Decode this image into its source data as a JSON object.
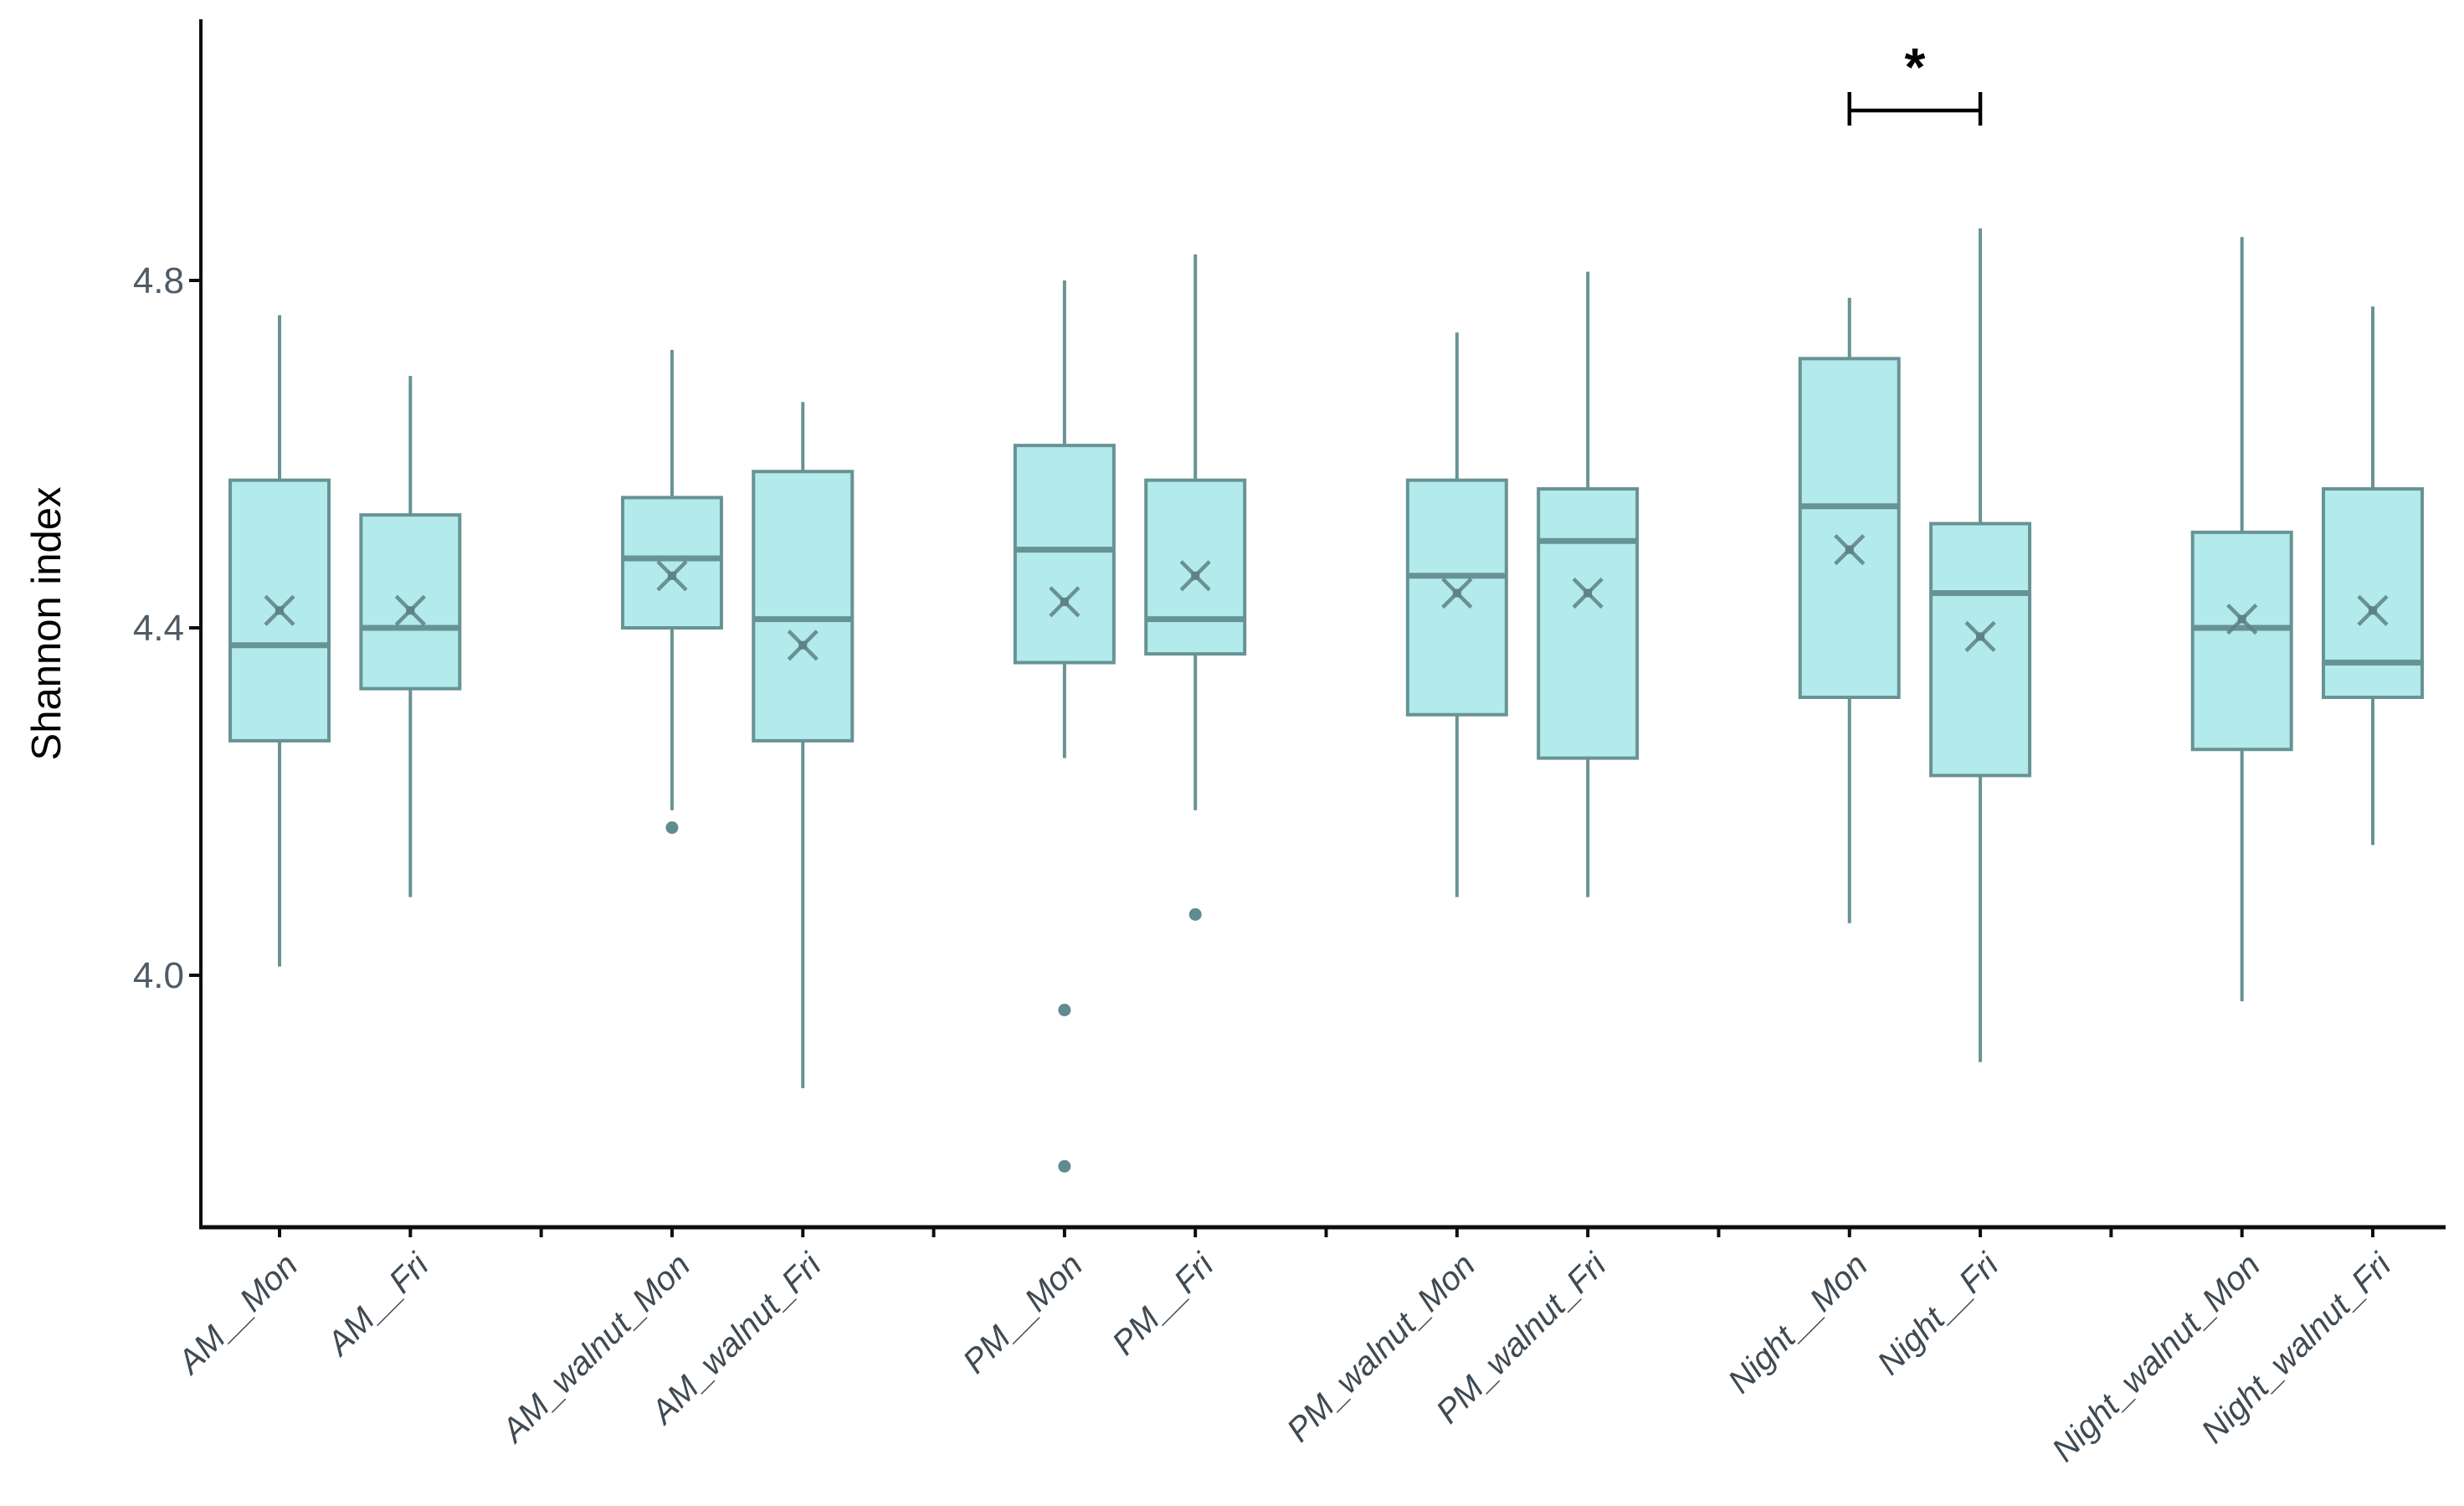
{
  "chart_data": {
    "type": "box",
    "ylabel": "Shannon index",
    "yticks": [
      4.0,
      4.4,
      4.8
    ],
    "ytick_labels": [
      "4.0",
      "4.4",
      "4.8"
    ],
    "ylim": [
      3.7,
      5.1
    ],
    "grid": false,
    "legend": false,
    "colors": {
      "box_fill": "#b3eaeb",
      "box_stroke": "#689394",
      "whisker": "#689394",
      "median": "#689394",
      "mean_marker": "#5e8285",
      "outlier": "#5f8c8e",
      "axis": "#0d0d0d",
      "ytick_text": "#4f5b66",
      "xlabel_text": "#3f4a53",
      "significance": "#000000"
    },
    "categories": [
      "AM__Mon",
      "AM__Fri",
      "AM_walnut_Mon",
      "AM_walnut_Fri",
      "PM__Mon",
      "PM__Fri",
      "PM_walnut_Mon",
      "PM_walnut_Fri",
      "Night__Mon",
      "Night__Fri",
      "Night_walnut_Mon",
      "Night_walnut_Fri"
    ],
    "boxes": [
      {
        "category": "AM__Mon",
        "whisker_low": 4.01,
        "q1": 4.27,
        "median": 4.38,
        "q3": 4.57,
        "whisker_high": 4.76,
        "mean": 4.42,
        "outliers": []
      },
      {
        "category": "AM__Fri",
        "whisker_low": 4.09,
        "q1": 4.33,
        "median": 4.4,
        "q3": 4.53,
        "whisker_high": 4.69,
        "mean": 4.42,
        "outliers": []
      },
      {
        "category": "AM_walnut_Mon",
        "whisker_low": 4.19,
        "q1": 4.4,
        "median": 4.48,
        "q3": 4.55,
        "whisker_high": 4.72,
        "mean": 4.46,
        "outliers": [
          4.17
        ]
      },
      {
        "category": "AM_walnut_Fri",
        "whisker_low": 3.87,
        "q1": 4.27,
        "median": 4.41,
        "q3": 4.58,
        "whisker_high": 4.66,
        "mean": 4.38,
        "outliers": []
      },
      {
        "category": "PM__Mon",
        "whisker_low": 4.25,
        "q1": 4.36,
        "median": 4.49,
        "q3": 4.61,
        "whisker_high": 4.8,
        "mean": 4.43,
        "outliers": [
          3.96,
          3.78
        ]
      },
      {
        "category": "PM__Fri",
        "whisker_low": 4.19,
        "q1": 4.37,
        "median": 4.41,
        "q3": 4.57,
        "whisker_high": 4.83,
        "mean": 4.46,
        "outliers": [
          4.07
        ]
      },
      {
        "category": "PM_walnut_Mon",
        "whisker_low": 4.09,
        "q1": 4.3,
        "median": 4.46,
        "q3": 4.57,
        "whisker_high": 4.74,
        "mean": 4.44,
        "outliers": []
      },
      {
        "category": "PM_walnut_Fri",
        "whisker_low": 4.09,
        "q1": 4.25,
        "median": 4.5,
        "q3": 4.56,
        "whisker_high": 4.81,
        "mean": 4.44,
        "outliers": []
      },
      {
        "category": "Night__Mon",
        "whisker_low": 4.06,
        "q1": 4.32,
        "median": 4.54,
        "q3": 4.71,
        "whisker_high": 4.78,
        "mean": 4.49,
        "outliers": []
      },
      {
        "category": "Night__Fri",
        "whisker_low": 3.9,
        "q1": 4.23,
        "median": 4.44,
        "q3": 4.52,
        "whisker_high": 4.86,
        "mean": 4.39,
        "outliers": []
      },
      {
        "category": "Night_walnut_Mon",
        "whisker_low": 3.97,
        "q1": 4.26,
        "median": 4.4,
        "q3": 4.51,
        "whisker_high": 4.85,
        "mean": 4.41,
        "outliers": []
      },
      {
        "category": "Night_walnut_Fri",
        "whisker_low": 4.15,
        "q1": 4.32,
        "median": 4.36,
        "q3": 4.56,
        "whisker_high": 4.77,
        "mean": 4.42,
        "outliers": []
      }
    ],
    "significance": {
      "from": "Night__Mon",
      "to": "Night__Fri",
      "label": "*"
    }
  }
}
